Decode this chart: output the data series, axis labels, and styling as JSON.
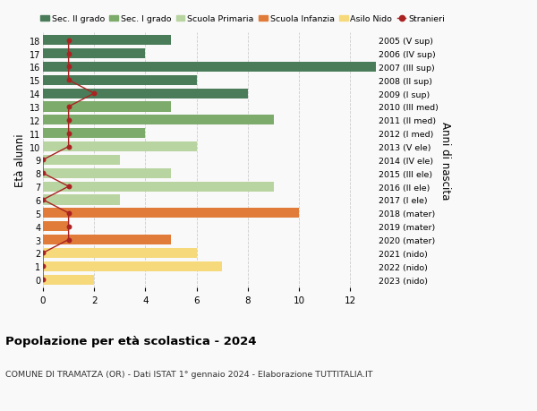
{
  "ages": [
    18,
    17,
    16,
    15,
    14,
    13,
    12,
    11,
    10,
    9,
    8,
    7,
    6,
    5,
    4,
    3,
    2,
    1,
    0
  ],
  "right_labels": [
    "2005 (V sup)",
    "2006 (IV sup)",
    "2007 (III sup)",
    "2008 (II sup)",
    "2009 (I sup)",
    "2010 (III med)",
    "2011 (II med)",
    "2012 (I med)",
    "2013 (V ele)",
    "2014 (IV ele)",
    "2015 (III ele)",
    "2016 (II ele)",
    "2017 (I ele)",
    "2018 (mater)",
    "2019 (mater)",
    "2020 (mater)",
    "2021 (nido)",
    "2022 (nido)",
    "2023 (nido)"
  ],
  "bar_values": [
    5,
    4,
    13,
    6,
    8,
    5,
    9,
    4,
    6,
    3,
    5,
    9,
    3,
    10,
    1,
    5,
    6,
    7,
    2
  ],
  "bar_colors": [
    "#4a7c59",
    "#4a7c59",
    "#4a7c59",
    "#4a7c59",
    "#4a7c59",
    "#7dab6b",
    "#7dab6b",
    "#7dab6b",
    "#b8d4a0",
    "#b8d4a0",
    "#b8d4a0",
    "#b8d4a0",
    "#b8d4a0",
    "#e07b39",
    "#e07b39",
    "#e07b39",
    "#f5d97a",
    "#f5d97a",
    "#f5d97a"
  ],
  "stranieri_x": [
    1,
    1,
    1,
    1,
    2,
    1,
    1,
    1,
    1,
    0,
    0,
    1,
    0,
    1,
    1,
    1,
    0,
    0,
    0
  ],
  "legend_labels": [
    "Sec. II grado",
    "Sec. I grado",
    "Scuola Primaria",
    "Scuola Infanzia",
    "Asilo Nido",
    "Stranieri"
  ],
  "legend_colors": [
    "#4a7c59",
    "#7dab6b",
    "#b8d4a0",
    "#e07b39",
    "#f5d97a",
    "#aa2222"
  ],
  "left_ylabel": "Età alunni",
  "right_ylabel": "Anni di nascita",
  "title": "Popolazione per età scolastica - 2024",
  "subtitle": "COMUNE DI TRAMATZA (OR) - Dati ISTAT 1° gennaio 2024 - Elaborazione TUTTITALIA.IT",
  "xlim": [
    0,
    13
  ],
  "bg_color": "#f9f9f9",
  "grid_color": "#cccccc"
}
